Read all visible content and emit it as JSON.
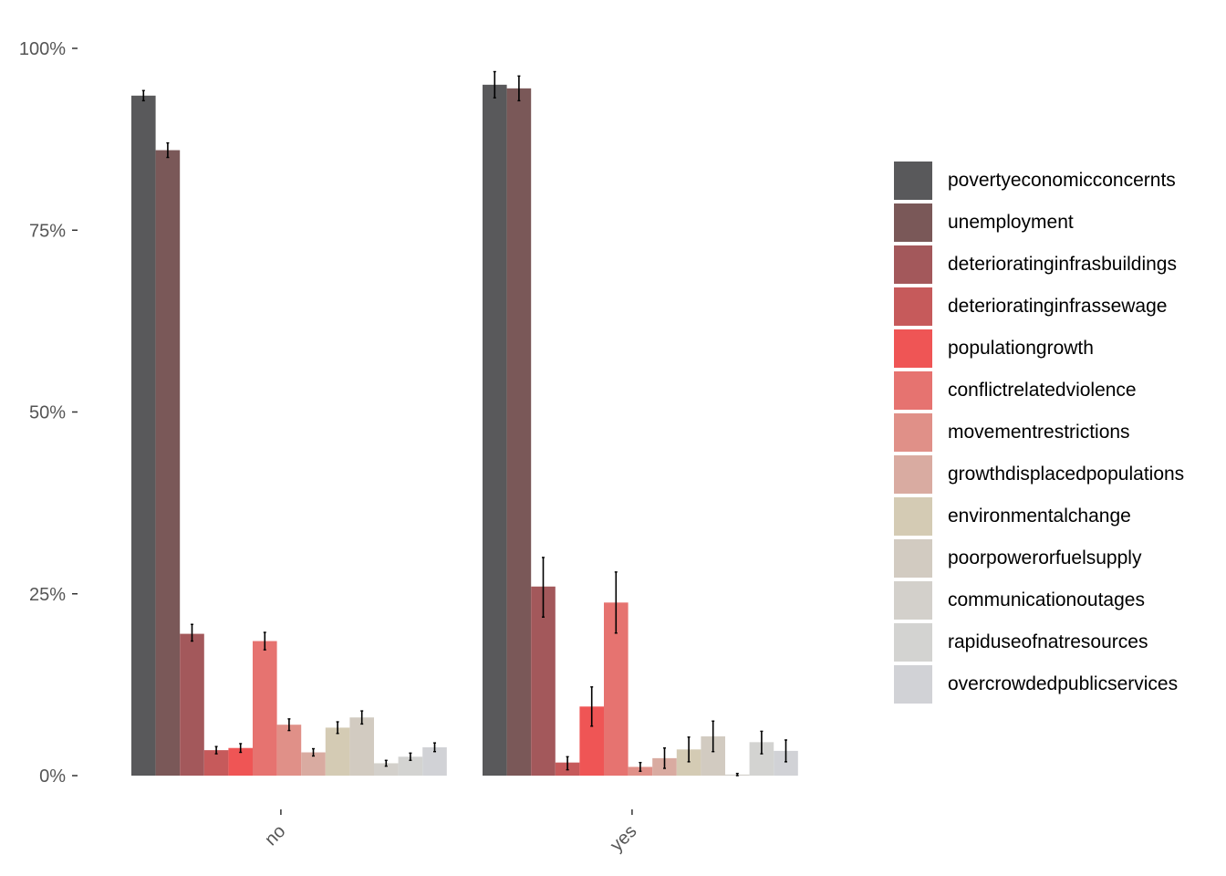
{
  "chart_data": {
    "type": "bar",
    "categories": [
      "no",
      "yes"
    ],
    "y_ticks": [
      "0%",
      "25%",
      "50%",
      "75%",
      "100%"
    ],
    "ylim": [
      0,
      100
    ],
    "grid": false,
    "legend_position": "right",
    "series": [
      {
        "name": "povertyeconomicconcernts",
        "color": "#59595b",
        "values": [
          93.5,
          95.0
        ],
        "error": [
          [
            92.8,
            94.2
          ],
          [
            93.2,
            96.8
          ]
        ]
      },
      {
        "name": "unemployment",
        "color": "#7a5858",
        "values": [
          86.0,
          94.5
        ],
        "error": [
          [
            85.0,
            87.0
          ],
          [
            92.8,
            96.2
          ]
        ]
      },
      {
        "name": "deterioratinginfrasbuildings",
        "color": "#a3585b",
        "values": [
          19.5,
          26.0
        ],
        "error": [
          [
            18.5,
            20.8
          ],
          [
            21.8,
            30.0
          ]
        ]
      },
      {
        "name": "deterioratinginfrassewage",
        "color": "#c65a5b",
        "values": [
          3.5,
          1.8
        ],
        "error": [
          [
            3.0,
            4.0
          ],
          [
            0.8,
            2.6
          ]
        ]
      },
      {
        "name": "populationgrowth",
        "color": "#ef5555",
        "values": [
          3.8,
          9.5
        ],
        "error": [
          [
            3.2,
            4.4
          ],
          [
            6.8,
            12.2
          ]
        ]
      },
      {
        "name": "conflictrelatedviolence",
        "color": "#e67370",
        "values": [
          18.5,
          23.8
        ],
        "error": [
          [
            17.3,
            19.7
          ],
          [
            19.6,
            28.0
          ]
        ]
      },
      {
        "name": "movementrestrictions",
        "color": "#e09088",
        "values": [
          7.0,
          1.2
        ],
        "error": [
          [
            6.2,
            7.8
          ],
          [
            0.6,
            1.8
          ]
        ]
      },
      {
        "name": "growthdisplacedpopulations",
        "color": "#d9aba1",
        "values": [
          3.2,
          2.4
        ],
        "error": [
          [
            2.7,
            3.7
          ],
          [
            1.0,
            3.8
          ]
        ]
      },
      {
        "name": "environmentalchange",
        "color": "#d4cbb4",
        "values": [
          6.6,
          3.6
        ],
        "error": [
          [
            5.8,
            7.4
          ],
          [
            1.9,
            5.3
          ]
        ]
      },
      {
        "name": "poorpowerorfuelsupply",
        "color": "#d2cbc1",
        "values": [
          8.0,
          5.4
        ],
        "error": [
          [
            7.1,
            8.9
          ],
          [
            3.3,
            7.5
          ]
        ]
      },
      {
        "name": "communicationoutages",
        "color": "#d3d0cb",
        "values": [
          1.7,
          0.15
        ],
        "error": [
          [
            1.3,
            2.1
          ],
          [
            0.0,
            0.3
          ]
        ]
      },
      {
        "name": "rapiduseofnatresources",
        "color": "#d3d3d1",
        "values": [
          2.6,
          4.6
        ],
        "error": [
          [
            2.1,
            3.1
          ],
          [
            3.0,
            6.1
          ]
        ]
      },
      {
        "name": "overcrowdedpublicservices",
        "color": "#d1d2d6",
        "values": [
          3.9,
          3.4
        ],
        "error": [
          [
            3.3,
            4.5
          ],
          [
            1.9,
            4.9
          ]
        ]
      }
    ]
  }
}
